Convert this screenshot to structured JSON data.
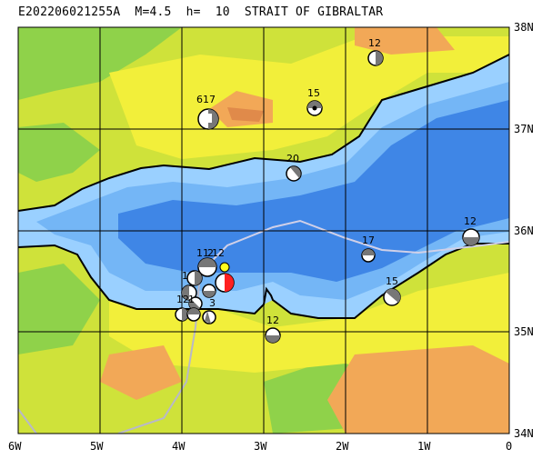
{
  "title": "E202206021255A  M=4.5  h=  10  STRAIT OF GIBRALTAR",
  "lat_labels": [
    "38N",
    "37N",
    "36N",
    "35N",
    "34N"
  ],
  "lon_labels": [
    "6W",
    "5W",
    "4W",
    "3W",
    "2W",
    "1W",
    "0"
  ],
  "colors": {
    "lowland": "#8fd24a",
    "midland": "#cfe23a",
    "upland": "#f2ef3a",
    "highland": "#f2a857",
    "peak": "#e08a4a",
    "shelf": "#9ad0ff",
    "sea_mid": "#74b6f6",
    "sea_deep": "#3f86e6",
    "main_event": "#ff2020",
    "marker": "#ffff20"
  },
  "event_depths": [
    "12",
    "15",
    "617",
    "20",
    "12",
    "17",
    "15",
    "12",
    "11",
    "2",
    "12",
    "1",
    "12",
    "1",
    "3",
    "11",
    "1"
  ]
}
